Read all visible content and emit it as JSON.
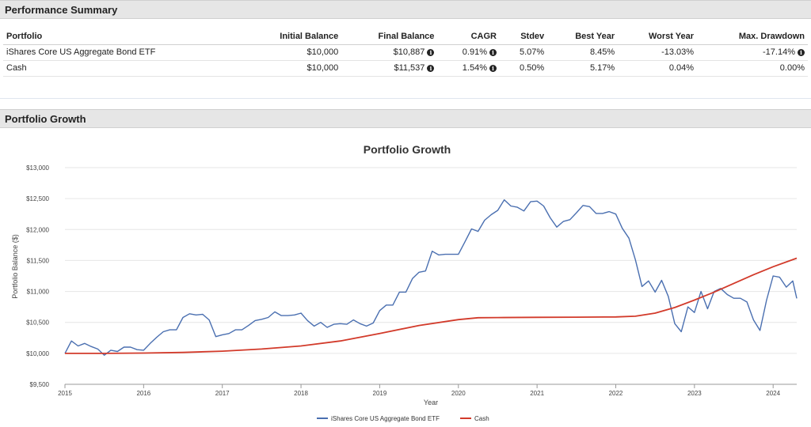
{
  "performance": {
    "title": "Performance Summary",
    "columns": [
      "Portfolio",
      "Initial Balance",
      "Final Balance",
      "CAGR",
      "Stdev",
      "Best Year",
      "Worst Year",
      "Max. Drawdown"
    ],
    "rows": [
      {
        "portfolio": "iShares Core US Aggregate Bond ETF",
        "initial": "$10,000",
        "final": "$10,887",
        "cagr": "0.91%",
        "stdev": "5.07%",
        "best": "8.45%",
        "worst": "-13.03%",
        "drawdown": "-17.14%"
      },
      {
        "portfolio": "Cash",
        "initial": "$10,000",
        "final": "$11,537",
        "cagr": "1.54%",
        "stdev": "0.50%",
        "best": "5.17%",
        "worst": "0.04%",
        "drawdown": "0.00%"
      }
    ],
    "info_icon": "info-circle-icon"
  },
  "growth": {
    "header": "Portfolio Growth"
  },
  "chart_data": {
    "type": "line",
    "title": "Portfolio Growth",
    "xlabel": "Year",
    "ylabel": "Portfolio Balance ($)",
    "ylim": [
      9500,
      13000
    ],
    "xlim": [
      2015.0,
      2024.3
    ],
    "yticks": [
      9500,
      10000,
      10500,
      11000,
      11500,
      12000,
      12500,
      13000
    ],
    "ytick_labels": [
      "$9,500",
      "$10,000",
      "$10,500",
      "$11,000",
      "$11,500",
      "$12,000",
      "$12,500",
      "$13,000"
    ],
    "xticks": [
      2015,
      2016,
      2017,
      2018,
      2019,
      2020,
      2021,
      2022,
      2023,
      2024
    ],
    "xtick_labels": [
      "2015",
      "2016",
      "2017",
      "2018",
      "2019",
      "2020",
      "2021",
      "2022",
      "2023",
      "2024"
    ],
    "grid": true,
    "legend": "bottom-center",
    "series": [
      {
        "name": "iShares Core US Aggregate Bond ETF",
        "color": "#4a6fb0",
        "x": [
          2015.0,
          2015.083,
          2015.167,
          2015.25,
          2015.333,
          2015.417,
          2015.5,
          2015.583,
          2015.667,
          2015.75,
          2015.833,
          2015.917,
          2016.0,
          2016.083,
          2016.167,
          2016.25,
          2016.333,
          2016.417,
          2016.5,
          2016.583,
          2016.667,
          2016.75,
          2016.833,
          2016.917,
          2017.0,
          2017.083,
          2017.167,
          2017.25,
          2017.333,
          2017.417,
          2017.5,
          2017.583,
          2017.667,
          2017.75,
          2017.833,
          2017.917,
          2018.0,
          2018.083,
          2018.167,
          2018.25,
          2018.333,
          2018.417,
          2018.5,
          2018.583,
          2018.667,
          2018.75,
          2018.833,
          2018.917,
          2019.0,
          2019.083,
          2019.167,
          2019.25,
          2019.333,
          2019.417,
          2019.5,
          2019.583,
          2019.667,
          2019.75,
          2019.833,
          2019.917,
          2020.0,
          2020.083,
          2020.167,
          2020.25,
          2020.333,
          2020.417,
          2020.5,
          2020.583,
          2020.667,
          2020.75,
          2020.833,
          2020.917,
          2021.0,
          2021.083,
          2021.167,
          2021.25,
          2021.333,
          2021.417,
          2021.5,
          2021.583,
          2021.667,
          2021.75,
          2021.833,
          2021.917,
          2022.0,
          2022.083,
          2022.167,
          2022.25,
          2022.333,
          2022.417,
          2022.5,
          2022.583,
          2022.667,
          2022.75,
          2022.833,
          2022.917,
          2023.0,
          2023.083,
          2023.167,
          2023.25,
          2023.333,
          2023.417,
          2023.5,
          2023.583,
          2023.667,
          2023.75,
          2023.833,
          2023.917,
          2024.0,
          2024.083,
          2024.167,
          2024.25,
          2024.3
        ],
        "y": [
          10000,
          10200,
          10120,
          10160,
          10110,
          10070,
          9970,
          10050,
          10030,
          10100,
          10100,
          10060,
          10050,
          10160,
          10260,
          10350,
          10380,
          10380,
          10580,
          10640,
          10620,
          10630,
          10540,
          10270,
          10300,
          10320,
          10380,
          10380,
          10450,
          10530,
          10550,
          10580,
          10670,
          10610,
          10610,
          10620,
          10650,
          10530,
          10440,
          10500,
          10420,
          10470,
          10480,
          10470,
          10540,
          10480,
          10440,
          10490,
          10690,
          10780,
          10780,
          10990,
          10990,
          11210,
          11310,
          11330,
          11650,
          11590,
          11600,
          11600,
          11600,
          11800,
          12010,
          11970,
          12150,
          12240,
          12310,
          12480,
          12380,
          12360,
          12300,
          12450,
          12460,
          12380,
          12190,
          12040,
          12130,
          12160,
          12270,
          12390,
          12370,
          12260,
          12260,
          12290,
          12250,
          12020,
          11860,
          11510,
          11080,
          11170,
          10990,
          11180,
          10920,
          10480,
          10350,
          10750,
          10660,
          11000,
          10720,
          11000,
          11050,
          10950,
          10890,
          10890,
          10830,
          10540,
          10370,
          10860,
          11250,
          11230,
          11070,
          11170,
          10887
        ]
      },
      {
        "name": "Cash",
        "color": "#d23a2a",
        "x": [
          2015.0,
          2015.5,
          2016.0,
          2016.5,
          2017.0,
          2017.5,
          2018.0,
          2018.5,
          2019.0,
          2019.5,
          2020.0,
          2020.25,
          2020.5,
          2021.0,
          2021.5,
          2022.0,
          2022.25,
          2022.5,
          2022.75,
          2023.0,
          2023.25,
          2023.5,
          2023.75,
          2024.0,
          2024.3
        ],
        "y": [
          10000,
          10000,
          10005,
          10015,
          10035,
          10070,
          10120,
          10200,
          10320,
          10450,
          10545,
          10575,
          10578,
          10582,
          10585,
          10588,
          10600,
          10650,
          10740,
          10860,
          10990,
          11130,
          11270,
          11400,
          11537
        ]
      }
    ]
  }
}
